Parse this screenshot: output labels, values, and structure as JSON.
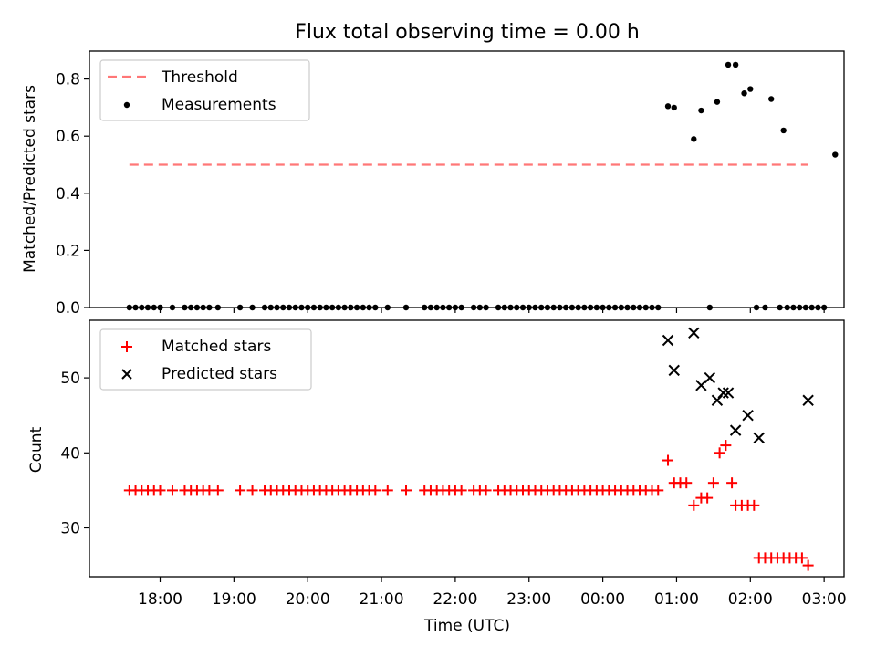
{
  "chart_data": [
    {
      "type": "scatter",
      "title": "Flux total observing time = 0.00 h",
      "xlabel": "",
      "ylabel": "Matched/Predicted stars",
      "ylim": [
        0,
        0.9
      ],
      "yticks": [
        "0.0",
        "0.2",
        "0.4",
        "0.6",
        "0.8"
      ],
      "show_xtick_labels": false,
      "grid": false,
      "legend": {
        "placement": "top-left",
        "entries": [
          {
            "label": "Threshold",
            "marker": "dashed-line",
            "color": "#ff7777"
          },
          {
            "label": "Measurements",
            "marker": "dot",
            "color": "#000000"
          }
        ]
      },
      "threshold": {
        "y": 0.5,
        "x_start": "17:35",
        "x_end": "02:47",
        "color": "#ff7777"
      },
      "series": [
        {
          "name": "Measurements",
          "marker": "dot",
          "color": "#000000",
          "points": [
            [
              "17:35",
              0.0
            ],
            [
              "17:40",
              0.0
            ],
            [
              "17:45",
              0.0
            ],
            [
              "17:50",
              0.0
            ],
            [
              "17:55",
              0.0
            ],
            [
              "18:00",
              0.0
            ],
            [
              "18:10",
              0.0
            ],
            [
              "18:20",
              0.0
            ],
            [
              "18:25",
              0.0
            ],
            [
              "18:30",
              0.0
            ],
            [
              "18:35",
              0.0
            ],
            [
              "18:40",
              0.0
            ],
            [
              "18:47",
              0.0
            ],
            [
              "19:05",
              0.0
            ],
            [
              "19:15",
              0.0
            ],
            [
              "19:25",
              0.0
            ],
            [
              "19:30",
              0.0
            ],
            [
              "19:35",
              0.0
            ],
            [
              "19:40",
              0.0
            ],
            [
              "19:45",
              0.0
            ],
            [
              "19:50",
              0.0
            ],
            [
              "19:55",
              0.0
            ],
            [
              "20:00",
              0.0
            ],
            [
              "20:05",
              0.0
            ],
            [
              "20:10",
              0.0
            ],
            [
              "20:15",
              0.0
            ],
            [
              "20:20",
              0.0
            ],
            [
              "20:25",
              0.0
            ],
            [
              "20:30",
              0.0
            ],
            [
              "20:35",
              0.0
            ],
            [
              "20:40",
              0.0
            ],
            [
              "20:45",
              0.0
            ],
            [
              "20:50",
              0.0
            ],
            [
              "20:55",
              0.0
            ],
            [
              "21:05",
              0.0
            ],
            [
              "21:20",
              0.0
            ],
            [
              "21:35",
              0.0
            ],
            [
              "21:40",
              0.0
            ],
            [
              "21:45",
              0.0
            ],
            [
              "21:50",
              0.0
            ],
            [
              "21:55",
              0.0
            ],
            [
              "22:00",
              0.0
            ],
            [
              "22:05",
              0.0
            ],
            [
              "22:15",
              0.0
            ],
            [
              "22:20",
              0.0
            ],
            [
              "22:25",
              0.0
            ],
            [
              "22:35",
              0.0
            ],
            [
              "22:40",
              0.0
            ],
            [
              "22:45",
              0.0
            ],
            [
              "22:50",
              0.0
            ],
            [
              "22:55",
              0.0
            ],
            [
              "23:00",
              0.0
            ],
            [
              "23:05",
              0.0
            ],
            [
              "23:10",
              0.0
            ],
            [
              "23:15",
              0.0
            ],
            [
              "23:20",
              0.0
            ],
            [
              "23:25",
              0.0
            ],
            [
              "23:30",
              0.0
            ],
            [
              "23:35",
              0.0
            ],
            [
              "23:40",
              0.0
            ],
            [
              "23:45",
              0.0
            ],
            [
              "23:50",
              0.0
            ],
            [
              "23:55",
              0.0
            ],
            [
              "00:00",
              0.0
            ],
            [
              "00:05",
              0.0
            ],
            [
              "00:10",
              0.0
            ],
            [
              "00:15",
              0.0
            ],
            [
              "00:20",
              0.0
            ],
            [
              "00:25",
              0.0
            ],
            [
              "00:30",
              0.0
            ],
            [
              "00:35",
              0.0
            ],
            [
              "00:40",
              0.0
            ],
            [
              "00:45",
              0.0
            ],
            [
              "00:53",
              0.705
            ],
            [
              "00:58",
              0.7
            ],
            [
              "01:14",
              0.59
            ],
            [
              "01:20",
              0.69
            ],
            [
              "01:27",
              0.0
            ],
            [
              "01:33",
              0.72
            ],
            [
              "01:42",
              0.85
            ],
            [
              "01:48",
              0.85
            ],
            [
              "01:55",
              0.75
            ],
            [
              "02:00",
              0.765
            ],
            [
              "02:05",
              0.0
            ],
            [
              "02:12",
              0.0
            ],
            [
              "02:17",
              0.73
            ],
            [
              "02:24",
              0.0
            ],
            [
              "02:27",
              0.62
            ],
            [
              "02:30",
              0.0
            ],
            [
              "02:35",
              0.0
            ],
            [
              "02:40",
              0.0
            ],
            [
              "02:45",
              0.0
            ],
            [
              "02:50",
              0.0
            ],
            [
              "02:55",
              0.0
            ],
            [
              "03:00",
              0.0
            ],
            [
              "03:09",
              0.535
            ]
          ]
        }
      ]
    },
    {
      "type": "scatter",
      "title": "",
      "xlabel": "Time (UTC)",
      "ylabel": "Count",
      "ylim": [
        23.5,
        57.5
      ],
      "yticks": [
        "30",
        "40",
        "50"
      ],
      "xticks": [
        "18:00",
        "19:00",
        "20:00",
        "21:00",
        "22:00",
        "23:00",
        "00:00",
        "01:00",
        "02:00",
        "03:00"
      ],
      "grid": false,
      "legend": {
        "placement": "top-left",
        "entries": [
          {
            "label": "Matched stars",
            "marker": "plus",
            "color": "#ff0000"
          },
          {
            "label": "Predicted stars",
            "marker": "x",
            "color": "#000000"
          }
        ]
      },
      "series": [
        {
          "name": "Matched stars",
          "marker": "plus",
          "color": "#ff0000",
          "points": [
            [
              "17:35",
              35
            ],
            [
              "17:40",
              35
            ],
            [
              "17:45",
              35
            ],
            [
              "17:50",
              35
            ],
            [
              "17:55",
              35
            ],
            [
              "18:00",
              35
            ],
            [
              "18:10",
              35
            ],
            [
              "18:20",
              35
            ],
            [
              "18:25",
              35
            ],
            [
              "18:30",
              35
            ],
            [
              "18:35",
              35
            ],
            [
              "18:40",
              35
            ],
            [
              "18:47",
              35
            ],
            [
              "19:05",
              35
            ],
            [
              "19:15",
              35
            ],
            [
              "19:25",
              35
            ],
            [
              "19:30",
              35
            ],
            [
              "19:35",
              35
            ],
            [
              "19:40",
              35
            ],
            [
              "19:45",
              35
            ],
            [
              "19:50",
              35
            ],
            [
              "19:55",
              35
            ],
            [
              "20:00",
              35
            ],
            [
              "20:05",
              35
            ],
            [
              "20:10",
              35
            ],
            [
              "20:15",
              35
            ],
            [
              "20:20",
              35
            ],
            [
              "20:25",
              35
            ],
            [
              "20:30",
              35
            ],
            [
              "20:35",
              35
            ],
            [
              "20:40",
              35
            ],
            [
              "20:45",
              35
            ],
            [
              "20:50",
              35
            ],
            [
              "20:55",
              35
            ],
            [
              "21:05",
              35
            ],
            [
              "21:20",
              35
            ],
            [
              "21:35",
              35
            ],
            [
              "21:40",
              35
            ],
            [
              "21:45",
              35
            ],
            [
              "21:50",
              35
            ],
            [
              "21:55",
              35
            ],
            [
              "22:00",
              35
            ],
            [
              "22:05",
              35
            ],
            [
              "22:15",
              35
            ],
            [
              "22:20",
              35
            ],
            [
              "22:25",
              35
            ],
            [
              "22:35",
              35
            ],
            [
              "22:40",
              35
            ],
            [
              "22:45",
              35
            ],
            [
              "22:50",
              35
            ],
            [
              "22:55",
              35
            ],
            [
              "23:00",
              35
            ],
            [
              "23:05",
              35
            ],
            [
              "23:10",
              35
            ],
            [
              "23:15",
              35
            ],
            [
              "23:20",
              35
            ],
            [
              "23:25",
              35
            ],
            [
              "23:30",
              35
            ],
            [
              "23:35",
              35
            ],
            [
              "23:40",
              35
            ],
            [
              "23:45",
              35
            ],
            [
              "23:50",
              35
            ],
            [
              "23:55",
              35
            ],
            [
              "00:00",
              35
            ],
            [
              "00:05",
              35
            ],
            [
              "00:10",
              35
            ],
            [
              "00:15",
              35
            ],
            [
              "00:20",
              35
            ],
            [
              "00:25",
              35
            ],
            [
              "00:30",
              35
            ],
            [
              "00:35",
              35
            ],
            [
              "00:40",
              35
            ],
            [
              "00:45",
              35
            ],
            [
              "00:53",
              39
            ],
            [
              "00:58",
              36
            ],
            [
              "01:03",
              36
            ],
            [
              "01:08",
              36
            ],
            [
              "01:14",
              33
            ],
            [
              "01:20",
              34
            ],
            [
              "01:25",
              34
            ],
            [
              "01:30",
              36
            ],
            [
              "01:35",
              40
            ],
            [
              "01:40",
              41
            ],
            [
              "01:45",
              36
            ],
            [
              "01:48",
              33
            ],
            [
              "01:53",
              33
            ],
            [
              "01:58",
              33
            ],
            [
              "02:03",
              33
            ],
            [
              "02:07",
              26
            ],
            [
              "02:12",
              26
            ],
            [
              "02:17",
              26
            ],
            [
              "02:22",
              26
            ],
            [
              "02:27",
              26
            ],
            [
              "02:32",
              26
            ],
            [
              "02:37",
              26
            ],
            [
              "02:42",
              26
            ],
            [
              "02:47",
              25
            ]
          ]
        },
        {
          "name": "Predicted stars",
          "marker": "x",
          "color": "#000000",
          "points": [
            [
              "00:53",
              55
            ],
            [
              "00:58",
              51
            ],
            [
              "01:14",
              56
            ],
            [
              "01:20",
              49
            ],
            [
              "01:27",
              50
            ],
            [
              "01:33",
              47
            ],
            [
              "01:38",
              48
            ],
            [
              "01:42",
              48
            ],
            [
              "01:48",
              43
            ],
            [
              "01:58",
              45
            ],
            [
              "02:07",
              42
            ],
            [
              "02:47",
              47
            ]
          ]
        }
      ]
    }
  ]
}
